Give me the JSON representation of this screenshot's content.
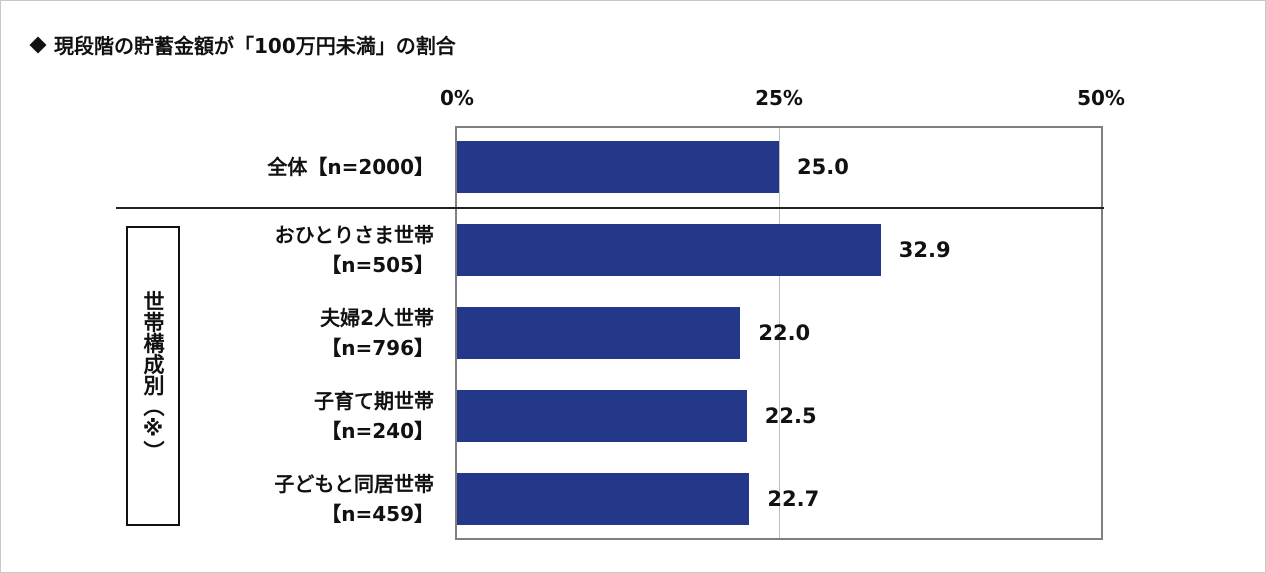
{
  "title": "現段階の貯蓄金額が「100万円未満」の割合",
  "group_label": "世帯構成別（※）",
  "chart_data": {
    "type": "bar",
    "orientation": "horizontal",
    "title": "現段階の貯蓄金額が「100万円未満」の割合",
    "xlim": [
      0,
      50
    ],
    "x_ticks": [
      "0%",
      "25%",
      "50%"
    ],
    "grid": true,
    "categories": [
      {
        "line1": "全体【n=2000】",
        "line2": ""
      },
      {
        "line1": "おひとりさま世帯",
        "line2": "【n=505】"
      },
      {
        "line1": "夫婦2人世帯",
        "line2": "【n=796】"
      },
      {
        "line1": "子育て期世帯",
        "line2": "【n=240】"
      },
      {
        "line1": "子どもと同居世帯",
        "line2": "【n=459】"
      }
    ],
    "values": [
      25.0,
      32.9,
      22.0,
      22.5,
      22.7
    ],
    "value_labels": [
      "25.0",
      "32.9",
      "22.0",
      "22.5",
      "22.7"
    ],
    "bar_color": "#24388a"
  }
}
